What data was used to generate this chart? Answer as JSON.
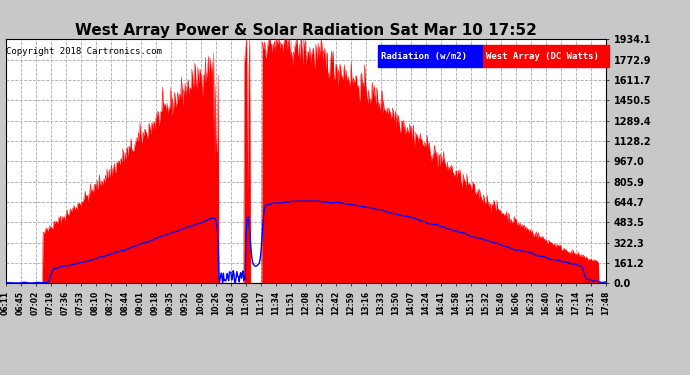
{
  "title": "West Array Power & Solar Radiation Sat Mar 10 17:52",
  "copyright": "Copyright 2018 Cartronics.com",
  "legend_radiation": "Radiation (w/m2)",
  "legend_west": "West Array (DC Watts)",
  "ymax": 1934.1,
  "yticks": [
    0.0,
    161.2,
    322.3,
    483.5,
    644.7,
    805.9,
    967.0,
    1128.2,
    1289.4,
    1450.5,
    1611.7,
    1772.9,
    1934.1
  ],
  "bg_color": "#c8c8c8",
  "plot_bg_color": "#ffffff",
  "grid_color": "#aaaaaa",
  "red_color": "#ff0000",
  "blue_color": "#0000ff",
  "title_color": "#000000",
  "xtick_labels": [
    "06:11",
    "06:45",
    "07:02",
    "07:19",
    "07:36",
    "07:53",
    "08:10",
    "08:27",
    "08:44",
    "09:01",
    "09:18",
    "09:35",
    "09:52",
    "10:09",
    "10:26",
    "10:43",
    "11:00",
    "11:17",
    "11:34",
    "11:51",
    "12:08",
    "12:25",
    "12:42",
    "12:59",
    "13:16",
    "13:33",
    "13:50",
    "14:07",
    "14:24",
    "14:41",
    "14:58",
    "15:15",
    "15:32",
    "15:49",
    "16:06",
    "16:23",
    "16:40",
    "16:57",
    "17:14",
    "17:31",
    "17:48"
  ],
  "n_ticks": 41
}
